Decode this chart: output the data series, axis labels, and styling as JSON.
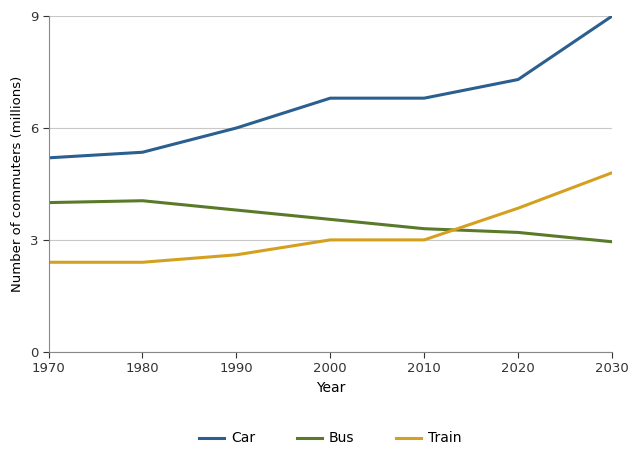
{
  "years": [
    1970,
    1980,
    1990,
    2000,
    2010,
    2020,
    2030
  ],
  "car": [
    5.2,
    5.35,
    6.0,
    6.8,
    6.8,
    7.3,
    9.0
  ],
  "bus": [
    4.0,
    4.05,
    3.8,
    3.55,
    3.3,
    3.2,
    2.95
  ],
  "train": [
    2.4,
    2.4,
    2.6,
    3.0,
    3.0,
    3.85,
    4.8
  ],
  "car_color": "#2a5f8f",
  "bus_color": "#5a7a2a",
  "train_color": "#d4a020",
  "linewidth": 2.2,
  "xlabel": "Year",
  "ylabel": "Number of commuters (millions)",
  "xlim": [
    1970,
    2030
  ],
  "ylim": [
    0,
    9
  ],
  "yticks": [
    0,
    3,
    6,
    9
  ],
  "xticks": [
    1970,
    1980,
    1990,
    2000,
    2010,
    2020,
    2030
  ],
  "legend_labels": [
    "Car",
    "Bus",
    "Train"
  ],
  "bg_color": "#ffffff",
  "grid_color": "#c8c8c8",
  "spine_color": "#888888"
}
